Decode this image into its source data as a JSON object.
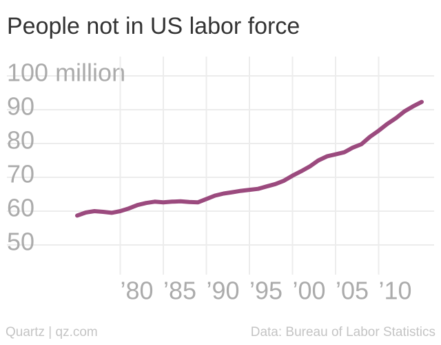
{
  "chart_data": {
    "type": "line",
    "title": "People not in US labor force",
    "source": "Data: Bureau of Labor Statistics",
    "credit": "Quartz | qz.com",
    "x": [
      1975,
      1976,
      1977,
      1978,
      1979,
      1980,
      1981,
      1982,
      1983,
      1984,
      1985,
      1986,
      1987,
      1988,
      1989,
      1990,
      1991,
      1992,
      1993,
      1994,
      1995,
      1996,
      1997,
      1998,
      1999,
      2000,
      2001,
      2002,
      2003,
      2004,
      2005,
      2006,
      2007,
      2008,
      2009,
      2010,
      2011,
      2012,
      2013,
      2014,
      2015
    ],
    "series": [
      {
        "color": "#9b4a7e",
        "values": [
          58.7,
          59.6,
          60.0,
          59.8,
          59.5,
          60.0,
          60.8,
          61.8,
          62.4,
          62.8,
          62.6,
          62.8,
          62.9,
          62.7,
          62.6,
          63.6,
          64.6,
          65.2,
          65.6,
          66.0,
          66.3,
          66.6,
          67.3,
          68.0,
          69.0,
          70.5,
          71.8,
          73.2,
          75.0,
          76.2,
          76.8,
          77.4,
          78.8,
          79.8,
          82.0,
          83.8,
          85.8,
          87.5,
          89.5,
          91.0,
          92.3
        ]
      }
    ],
    "xlim": [
      1975,
      2015
    ],
    "xticks": [
      {
        "value": 1980,
        "label": "’80"
      },
      {
        "value": 1985,
        "label": "’85"
      },
      {
        "value": 1990,
        "label": "’90"
      },
      {
        "value": 1995,
        "label": "’95"
      },
      {
        "value": 2000,
        "label": "’00"
      },
      {
        "value": 2005,
        "label": "’05"
      },
      {
        "value": 2010,
        "label": "’10"
      }
    ],
    "ylim": [
      50,
      100
    ],
    "yticks": [
      50,
      60,
      70,
      80,
      90,
      {
        "value": 100,
        "label": "100 million"
      }
    ],
    "grid": true
  }
}
